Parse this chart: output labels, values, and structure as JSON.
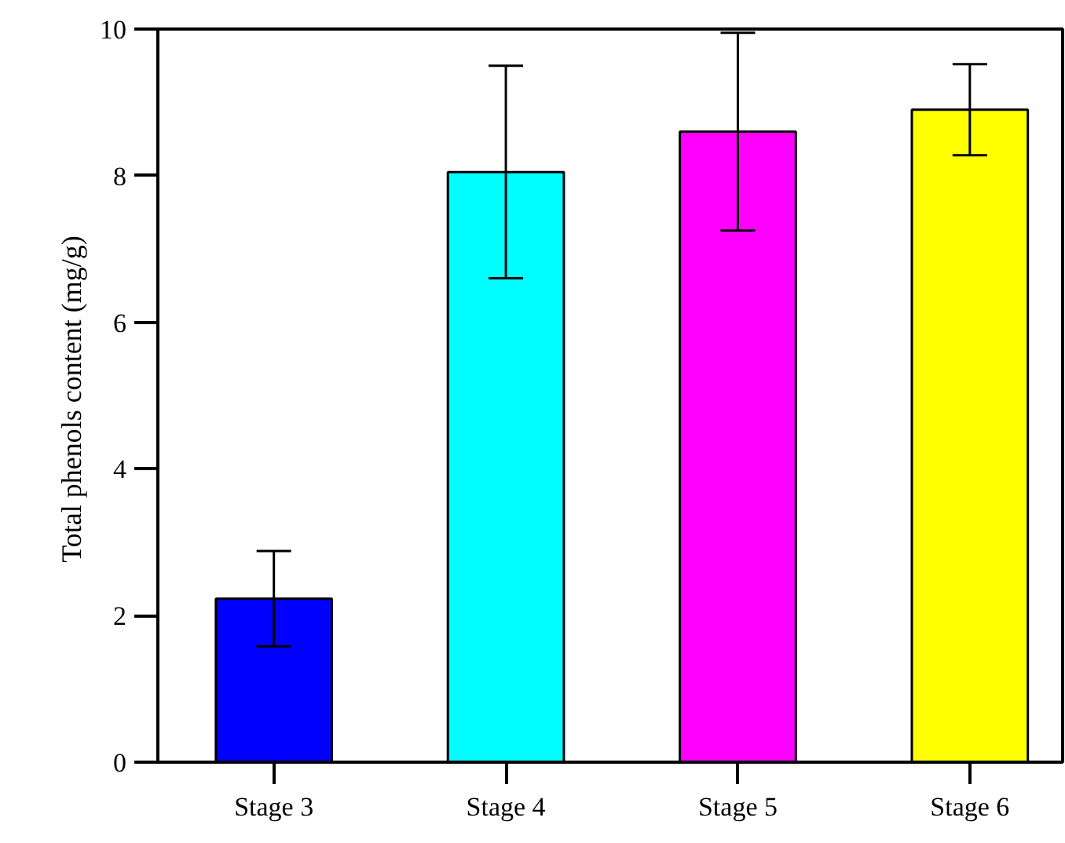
{
  "chart_data": {
    "type": "bar",
    "ylabel": "Total  phenols content (mg/g)",
    "categories": [
      "Stage 3",
      "Stage 4",
      "Stage 5",
      "Stage 6"
    ],
    "values": [
      2.23,
      8.05,
      8.6,
      8.9
    ],
    "errors": [
      0.65,
      1.45,
      1.35,
      0.62
    ],
    "colors": [
      "#0000ff",
      "#00ffff",
      "#ff00ff",
      "#ffff00"
    ],
    "ylim": [
      0,
      10
    ],
    "yticks": [
      0,
      2,
      4,
      6,
      8,
      10
    ],
    "grid": false
  }
}
